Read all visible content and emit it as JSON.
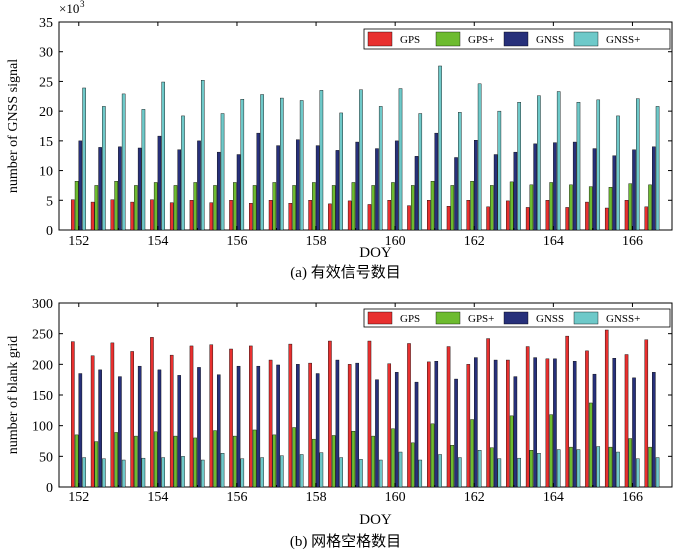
{
  "colors": {
    "GPS": "#e8302f",
    "GPS+": "#6dbb2f",
    "GNSS": "#27307a",
    "GNSS+": "#6ec9c9"
  },
  "chart_data": [
    {
      "type": "bar",
      "title": "(a) 有效信号数目",
      "xlabel": "DOY",
      "ylabel": "number of  GNSS signal",
      "y_multiplier_label": "×10",
      "y_multiplier_exp": "3",
      "ylim": [
        0,
        35
      ],
      "yticks": [
        0,
        5,
        10,
        15,
        20,
        25,
        30,
        35
      ],
      "xticks": [
        "152",
        "154",
        "156",
        "158",
        "160",
        "162",
        "164",
        "166"
      ],
      "xtick_positions": [
        152,
        154,
        156,
        158,
        160,
        162,
        164,
        166
      ],
      "legend": [
        "GPS",
        "GPS+",
        "GNSS",
        "GNSS+"
      ],
      "legend_position": "top-right",
      "x": [
        152.0,
        152.5,
        153.0,
        153.5,
        154.0,
        154.5,
        155.0,
        155.5,
        156.0,
        156.5,
        157.0,
        157.5,
        158.0,
        158.5,
        159.0,
        159.5,
        160.0,
        160.5,
        161.0,
        161.5,
        162.0,
        162.5,
        163.0,
        163.5,
        164.0,
        164.5,
        165.0,
        165.5,
        166.0,
        166.5
      ],
      "series": [
        {
          "name": "GPS",
          "values": [
            5.1,
            4.7,
            5.1,
            4.7,
            5.1,
            4.6,
            5.0,
            4.6,
            5.0,
            4.5,
            5.0,
            4.5,
            5.0,
            4.4,
            4.9,
            4.3,
            5.0,
            4.1,
            5.0,
            4.0,
            5.0,
            3.9,
            4.9,
            3.8,
            5.0,
            3.8,
            4.7,
            3.7,
            5.0,
            3.9
          ]
        },
        {
          "name": "GPS+",
          "values": [
            8.2,
            7.5,
            8.2,
            7.5,
            8.0,
            7.5,
            8.0,
            7.5,
            8.0,
            7.5,
            8.0,
            7.5,
            8.0,
            7.5,
            8.0,
            7.5,
            8.0,
            7.5,
            8.2,
            7.5,
            8.2,
            7.5,
            8.1,
            7.6,
            8.0,
            7.6,
            7.3,
            7.2,
            7.8,
            7.6
          ]
        },
        {
          "name": "GNSS",
          "values": [
            15.0,
            13.9,
            14.0,
            13.8,
            15.8,
            13.5,
            15.0,
            13.1,
            12.7,
            16.3,
            14.2,
            15.2,
            14.2,
            13.4,
            14.8,
            13.7,
            15.0,
            12.4,
            16.3,
            12.2,
            15.1,
            12.7,
            13.1,
            14.5,
            14.7,
            14.8,
            13.7,
            12.5,
            13.5,
            14.0
          ]
        },
        {
          "name": "GNSS+",
          "values": [
            23.9,
            20.8,
            22.9,
            20.3,
            24.9,
            19.2,
            25.2,
            19.6,
            22.0,
            22.8,
            22.2,
            21.8,
            23.5,
            19.7,
            23.6,
            20.8,
            23.8,
            19.6,
            27.6,
            19.8,
            24.6,
            20.0,
            21.5,
            22.6,
            23.3,
            21.5,
            21.9,
            19.2,
            22.1,
            20.8
          ]
        }
      ]
    },
    {
      "type": "bar",
      "title": "(b) 网格空格数目",
      "xlabel": "DOY",
      "ylabel": "number of blank grid",
      "ylim": [
        0,
        300
      ],
      "yticks": [
        0,
        50,
        100,
        150,
        200,
        250,
        300
      ],
      "xticks": [
        "152",
        "154",
        "156",
        "158",
        "160",
        "162",
        "164",
        "166"
      ],
      "xtick_positions": [
        152,
        154,
        156,
        158,
        160,
        162,
        164,
        166
      ],
      "legend": [
        "GPS",
        "GPS+",
        "GNSS",
        "GNSS+"
      ],
      "legend_position": "top-right",
      "x": [
        152.0,
        152.5,
        153.0,
        153.5,
        154.0,
        154.5,
        155.0,
        155.5,
        156.0,
        156.5,
        157.0,
        157.5,
        158.0,
        158.5,
        159.0,
        159.5,
        160.0,
        160.5,
        161.0,
        161.5,
        162.0,
        162.5,
        163.0,
        163.5,
        164.0,
        164.5,
        165.0,
        165.5,
        166.0,
        166.5
      ],
      "series": [
        {
          "name": "GPS",
          "values": [
            237,
            214,
            235,
            221,
            244,
            215,
            230,
            232,
            225,
            230,
            207,
            233,
            202,
            238,
            200,
            238,
            201,
            234,
            204,
            229,
            200,
            242,
            207,
            229,
            209,
            246,
            222,
            256,
            216,
            240
          ]
        },
        {
          "name": "GPS+",
          "values": [
            85,
            74,
            89,
            83,
            90,
            83,
            80,
            92,
            83,
            93,
            85,
            97,
            78,
            84,
            91,
            83,
            95,
            72,
            103,
            68,
            110,
            64,
            116,
            60,
            118,
            65,
            137,
            65,
            79,
            65
          ]
        },
        {
          "name": "GNSS",
          "values": [
            185,
            191,
            180,
            197,
            191,
            182,
            195,
            183,
            197,
            197,
            199,
            200,
            185,
            207,
            202,
            175,
            187,
            171,
            205,
            176,
            211,
            207,
            180,
            211,
            209,
            205,
            184,
            210,
            178,
            187
          ]
        },
        {
          "name": "GNSS+",
          "values": [
            48,
            46,
            44,
            47,
            48,
            50,
            44,
            55,
            46,
            48,
            51,
            53,
            56,
            48,
            45,
            44,
            57,
            44,
            53,
            48,
            60,
            46,
            47,
            55,
            61,
            61,
            66,
            57,
            46,
            48
          ]
        }
      ]
    }
  ]
}
